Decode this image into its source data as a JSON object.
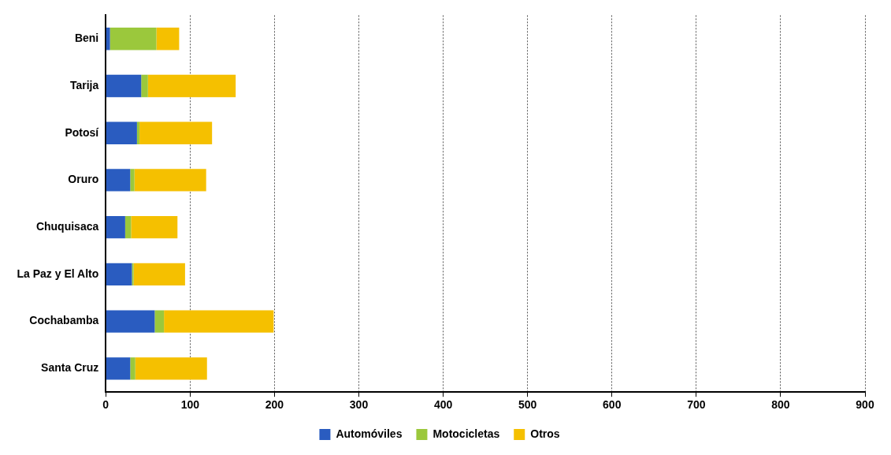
{
  "chart_data": {
    "type": "bar",
    "orientation": "horizontal",
    "stacked": true,
    "categories": [
      "Beni",
      "Tarija",
      "Potosí",
      "Oruro",
      "Chuquisaca",
      "La Paz y El Alto",
      "Cochabamba",
      "Santa Cruz"
    ],
    "series": [
      {
        "name": "Automóviles",
        "color": "#2a5cc0",
        "values": [
          5,
          42,
          37,
          29,
          23,
          31,
          58,
          29
        ]
      },
      {
        "name": "Motocicletas",
        "color": "#9bc83c",
        "values": [
          55,
          8,
          3,
          5,
          7,
          2,
          11,
          6
        ]
      },
      {
        "name": "Otros",
        "color": "#f5c000",
        "values": [
          27,
          104,
          86,
          85,
          55,
          61,
          130,
          85
        ]
      }
    ],
    "xlim": [
      0,
      900
    ],
    "xticks": [
      0,
      100,
      200,
      300,
      400,
      500,
      600,
      700,
      800,
      900
    ],
    "grid": "x",
    "legend": "bottom"
  }
}
